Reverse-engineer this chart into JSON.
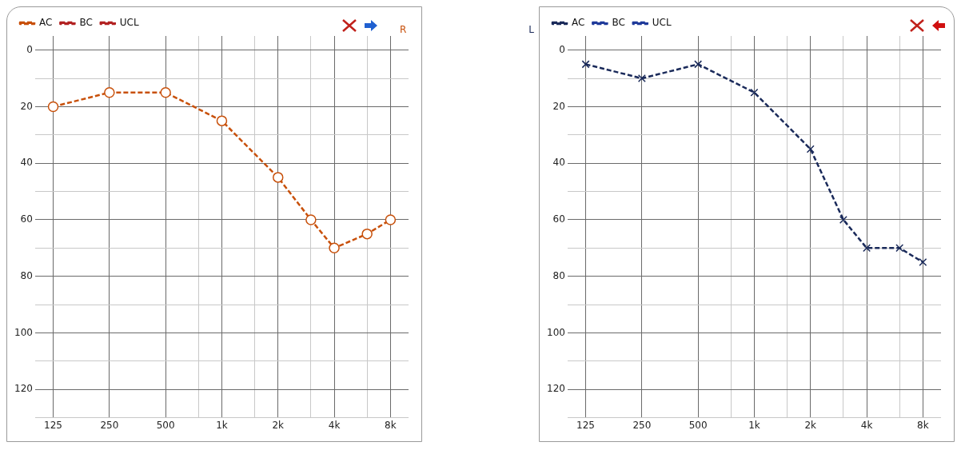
{
  "chart_data": [
    {
      "type": "line",
      "title": "R",
      "x": [
        125,
        250,
        500,
        1000,
        2000,
        3000,
        4000,
        6000,
        8000
      ],
      "log": "x",
      "xlim": [
        100,
        10000
      ],
      "ylim": [
        130,
        -5
      ],
      "xticks": [
        125,
        250,
        500,
        {
          "value": 750,
          "label": null
        },
        {
          "value": 1000,
          "label": "1k"
        },
        {
          "value": 1500,
          "label": null
        },
        {
          "value": 2000,
          "label": "2k"
        },
        {
          "value": 3000,
          "label": null
        },
        {
          "value": 4000,
          "label": "4k"
        },
        {
          "value": 6000,
          "label": null
        },
        {
          "value": 8000,
          "label": "8k"
        }
      ],
      "yticks": [
        0,
        {
          "value": 10,
          "label": null
        },
        20,
        {
          "value": 30,
          "label": null
        },
        40,
        {
          "value": 50,
          "label": null
        },
        60,
        {
          "value": 70,
          "label": null
        },
        80,
        {
          "value": 90,
          "label": null
        },
        100,
        {
          "value": 110,
          "label": null
        },
        120,
        {
          "value": 130,
          "label": null
        }
      ],
      "grid": true,
      "legend": "top left",
      "line_style": "dashed",
      "series": [
        {
          "name": "AC",
          "color": "#c8500a",
          "marker": "circle",
          "values": [
            20,
            15,
            15,
            25,
            45,
            60,
            70,
            65,
            60
          ]
        },
        {
          "name": "BC",
          "color": "#b22222",
          "marker": "none",
          "values": [
            null,
            null,
            null,
            null,
            null,
            null,
            null,
            null,
            null
          ]
        },
        {
          "name": "UCL",
          "color": "#b22222",
          "marker": "none",
          "values": [
            null,
            null,
            null,
            null,
            null,
            null,
            null,
            null,
            null
          ]
        }
      ]
    },
    {
      "type": "line",
      "title": "L",
      "x": [
        125,
        250,
        500,
        1000,
        2000,
        3000,
        4000,
        6000,
        8000
      ],
      "log": "x",
      "xlim": [
        100,
        10000
      ],
      "ylim": [
        130,
        -5
      ],
      "xticks": [
        125,
        250,
        500,
        {
          "value": 750,
          "label": null
        },
        {
          "value": 1000,
          "label": "1k"
        },
        {
          "value": 1500,
          "label": null
        },
        {
          "value": 2000,
          "label": "2k"
        },
        {
          "value": 3000,
          "label": null
        },
        {
          "value": 4000,
          "label": "4k"
        },
        {
          "value": 6000,
          "label": null
        },
        {
          "value": 8000,
          "label": "8k"
        }
      ],
      "yticks": [
        0,
        {
          "value": 10,
          "label": null
        },
        20,
        {
          "value": 30,
          "label": null
        },
        40,
        {
          "value": 50,
          "label": null
        },
        60,
        {
          "value": 70,
          "label": null
        },
        80,
        {
          "value": 90,
          "label": null
        },
        100,
        {
          "value": 110,
          "label": null
        },
        120,
        {
          "value": 130,
          "label": null
        }
      ],
      "grid": true,
      "legend": "top left",
      "line_style": "dashed",
      "series": [
        {
          "name": "AC",
          "color": "#1a2a5a",
          "marker": "cross",
          "values": [
            5,
            10,
            5,
            15,
            35,
            60,
            70,
            70,
            75
          ]
        },
        {
          "name": "BC",
          "color": "#1f3a9a",
          "marker": "none",
          "values": [
            null,
            null,
            null,
            null,
            null,
            null,
            null,
            null,
            null
          ]
        },
        {
          "name": "UCL",
          "color": "#1f3a9a",
          "marker": "none",
          "values": [
            null,
            null,
            null,
            null,
            null,
            null,
            null,
            null,
            null
          ]
        }
      ]
    }
  ]
}
